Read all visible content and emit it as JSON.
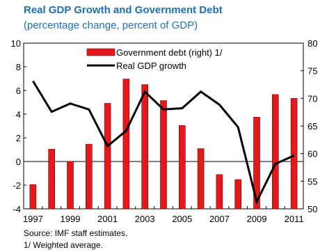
{
  "header": {
    "title": "Real GDP Growth and Government  Debt",
    "subtitle": "(percentage change, percent of GDP)"
  },
  "notes": {
    "source": "Source: IMF staff estimates.",
    "footnote": "1/ Weighted average."
  },
  "colors": {
    "bar": "#e31a1c",
    "bar_stroke": "#7a0000",
    "line": "#000000",
    "title": "#1f6fb5"
  },
  "chart_data": {
    "type": "bar+line",
    "categories": [
      "1997",
      "1998",
      "1999",
      "2000",
      "2001",
      "2002",
      "2003",
      "2004",
      "2005",
      "2006",
      "2007",
      "2008",
      "2009",
      "2010",
      "2011"
    ],
    "x_tick_labels": [
      "1997",
      "1999",
      "2001",
      "2003",
      "2005",
      "2007",
      "2009",
      "2011"
    ],
    "y_left": {
      "range": [
        -4,
        10
      ],
      "ticks": [
        -4,
        -2,
        0,
        2,
        4,
        6,
        8,
        10
      ]
    },
    "y_right": {
      "range": [
        50,
        80
      ],
      "ticks": [
        50,
        55,
        60,
        65,
        70,
        75,
        80
      ]
    },
    "legend_position": "top-center",
    "grid": false,
    "series": [
      {
        "name": "Government debt (right) 1/",
        "type": "bar",
        "axis": "right",
        "values": [
          54.4,
          60.8,
          58.6,
          61.7,
          69.1,
          73.5,
          72.5,
          69.6,
          65.1,
          60.9,
          56.2,
          55.3,
          66.6,
          70.7,
          70.0
        ]
      },
      {
        "name": "Real GDP growth",
        "type": "line",
        "axis": "left",
        "values": [
          6.8,
          4.2,
          4.9,
          4.4,
          1.3,
          2.6,
          5.9,
          4.4,
          4.5,
          5.9,
          4.8,
          2.9,
          -3.4,
          -0.2,
          0.5
        ]
      }
    ]
  }
}
